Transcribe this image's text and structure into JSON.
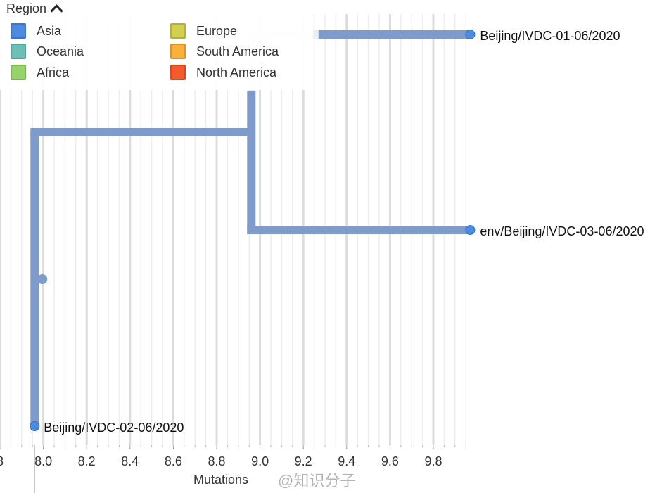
{
  "legend": {
    "title": "Region",
    "items": [
      {
        "label": "Asia",
        "color": "#4C8BE2"
      },
      {
        "label": "Oceania",
        "color": "#6BBFB5"
      },
      {
        "label": "Africa",
        "color": "#96D46A"
      },
      {
        "label": "Europe",
        "color": "#D3D04E"
      },
      {
        "label": "South America",
        "color": "#F9B13B"
      },
      {
        "label": "North America",
        "color": "#F55A2D"
      }
    ]
  },
  "watermark": "@知识分子",
  "chart_data": {
    "type": "tree",
    "xlabel": "Mutations",
    "xlim": [
      7.8,
      9.97
    ],
    "major_ticks": [
      7.8,
      8.0,
      8.2,
      8.4,
      8.6,
      8.8,
      9.0,
      9.2,
      9.4,
      9.6,
      9.8
    ],
    "tick_labels": [
      "8",
      "8.0",
      "8.2",
      "8.4",
      "8.6",
      "8.8",
      "9.0",
      "9.2",
      "9.4",
      "9.6",
      "9.8"
    ],
    "branch_color": "#7E9BCB",
    "tip_color": "#4C8BE2",
    "root": {
      "x": 7.96
    },
    "internal_node": {
      "x": 8.96
    },
    "tips": [
      {
        "name": "Beijing/IVDC-01-06/2020",
        "x": 9.97,
        "parent": "internal",
        "faded_until": 9.27
      },
      {
        "name": "env/Beijing/IVDC-03-06/2020",
        "x": 9.97,
        "parent": "internal"
      },
      {
        "name": "Beijing/IVDC-02-06/2020",
        "x": 7.96,
        "parent": "root"
      }
    ]
  }
}
